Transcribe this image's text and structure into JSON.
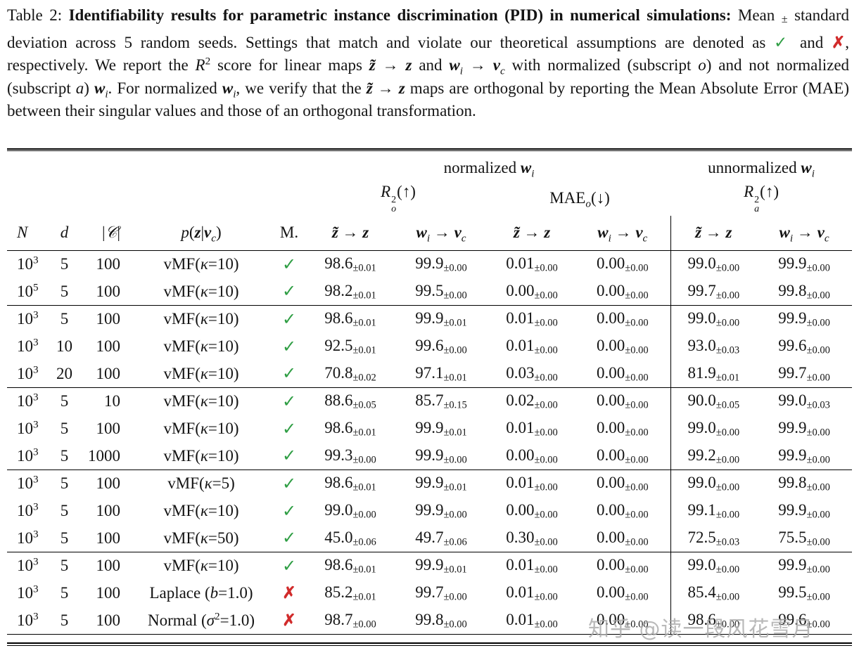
{
  "caption": {
    "label": "Table 2: ",
    "bold": "Identifiability results for parametric instance discrimination (PID) in numerical simulations:",
    "rest_html": " Mean <span class='pm-cap'>±</span> standard deviation across 5 random seeds. Settings that match and violate our theoretical assumptions are denoted as <span class='ok'>✓</span> and <span class='bad'>✗</span>, respectively. We report the <i>R</i><sup>2</sup> score for linear maps <b class='mi'>z̃</b> → <b class='mi'>z</b> and <b class='mi'>w</b><sub><i>i</i></sub> → <b class='mi'>v</b><sub><i>c</i></sub> with normalized (subscript <i>o</i>) and not normalized (subscript <i>a</i>) <b class='mi'>w</b><sub><i>i</i></sub>. For normalized <b class='mi'>w</b><sub><i>i</i></sub>, we verify that the <b class='mi'>z̃</b> → <b class='mi'>z</b> maps are orthogonal by reporting the Mean Absolute Error (MAE) between their singular values and those of an orthogonal transformation."
  },
  "icons": {
    "check": "✓",
    "cross": "✗"
  },
  "colors": {
    "check": "#2f9e44",
    "cross": "#d12b2b",
    "watermark": "#a8a8a8"
  },
  "watermark": {
    "text": "知乎 @读一段风花雪月"
  },
  "table": {
    "group_headers": [
      {
        "html": "normalized <b class='mi'>w</b><sub><i>i</i></sub>",
        "span": 4
      },
      {
        "html": "unnormalized <b class='mi'>w</b><sub><i>i</i></sub>",
        "span": 2
      }
    ],
    "metric_headers": [
      {
        "html": "<i>R</i><span class='ss'><span>2</span><span class='it'>o</span></span>(↑)",
        "span": 2
      },
      {
        "html": "MAE<sub><i>o</i></sub>(↓)",
        "span": 2
      },
      {
        "html": "<i>R</i><span class='ss'><span>2</span><span class='it'>a</span></span>(↑)",
        "span": 2
      }
    ],
    "col_headers_html": [
      "<i>N</i>",
      "<i>d</i>",
      "|<span class='scr'>𝒞</span>|",
      "<i>p</i>(<b class='mi'>z</b>|<b class='mi'>v</b><sub><i>c</i></sub>)",
      "M.",
      "<b class='mi'>z̃</b> → <b class='mi'>z</b>",
      "<b class='mi'>w</b><sub><i>i</i></sub> → <b class='mi'>v</b><sub><i>c</i></sub>",
      "<b class='mi'>z̃</b> → <b class='mi'>z</b>",
      "<b class='mi'>w</b><sub><i>i</i></sub> → <b class='mi'>v</b><sub><i>c</i></sub>",
      "<b class='mi'>z̃</b> → <b class='mi'>z</b>",
      "<b class='mi'>w</b><sub><i>i</i></sub> → <b class='mi'>v</b><sub><i>c</i></sub>"
    ],
    "groups": [
      [
        {
          "n": [
            "10",
            "3"
          ],
          "d": "5",
          "c": "100",
          "p": "vMF(<i>κ</i>=10)",
          "ok": true,
          "v": [
            [
              "98.6",
              "0.01"
            ],
            [
              "99.9",
              "0.00"
            ],
            [
              "0.01",
              "0.00"
            ],
            [
              "0.00",
              "0.00"
            ],
            [
              "99.0",
              "0.00"
            ],
            [
              "99.9",
              "0.00"
            ]
          ]
        },
        {
          "n": [
            "10",
            "5"
          ],
          "d": "5",
          "c": "100",
          "p": "vMF(<i>κ</i>=10)",
          "ok": true,
          "v": [
            [
              "98.2",
              "0.01"
            ],
            [
              "99.5",
              "0.00"
            ],
            [
              "0.00",
              "0.00"
            ],
            [
              "0.00",
              "0.00"
            ],
            [
              "99.7",
              "0.00"
            ],
            [
              "99.8",
              "0.00"
            ]
          ]
        }
      ],
      [
        {
          "n": [
            "10",
            "3"
          ],
          "d": "5",
          "c": "100",
          "p": "vMF(<i>κ</i>=10)",
          "ok": true,
          "v": [
            [
              "98.6",
              "0.01"
            ],
            [
              "99.9",
              "0.01"
            ],
            [
              "0.01",
              "0.00"
            ],
            [
              "0.00",
              "0.00"
            ],
            [
              "99.0",
              "0.00"
            ],
            [
              "99.9",
              "0.00"
            ]
          ]
        },
        {
          "n": [
            "10",
            "3"
          ],
          "d": "10",
          "c": "100",
          "p": "vMF(<i>κ</i>=10)",
          "ok": true,
          "v": [
            [
              "92.5",
              "0.01"
            ],
            [
              "99.6",
              "0.00"
            ],
            [
              "0.01",
              "0.00"
            ],
            [
              "0.00",
              "0.00"
            ],
            [
              "93.0",
              "0.03"
            ],
            [
              "99.6",
              "0.00"
            ]
          ]
        },
        {
          "n": [
            "10",
            "3"
          ],
          "d": "20",
          "c": "100",
          "p": "vMF(<i>κ</i>=10)",
          "ok": true,
          "v": [
            [
              "70.8",
              "0.02"
            ],
            [
              "97.1",
              "0.01"
            ],
            [
              "0.03",
              "0.00"
            ],
            [
              "0.00",
              "0.00"
            ],
            [
              "81.9",
              "0.01"
            ],
            [
              "99.7",
              "0.00"
            ]
          ]
        }
      ],
      [
        {
          "n": [
            "10",
            "3"
          ],
          "d": "5",
          "c": "10",
          "p": "vMF(<i>κ</i>=10)",
          "ok": true,
          "v": [
            [
              "88.6",
              "0.05"
            ],
            [
              "85.7",
              "0.15"
            ],
            [
              "0.02",
              "0.00"
            ],
            [
              "0.00",
              "0.00"
            ],
            [
              "90.0",
              "0.05"
            ],
            [
              "99.0",
              "0.03"
            ]
          ]
        },
        {
          "n": [
            "10",
            "3"
          ],
          "d": "5",
          "c": "100",
          "p": "vMF(<i>κ</i>=10)",
          "ok": true,
          "v": [
            [
              "98.6",
              "0.01"
            ],
            [
              "99.9",
              "0.01"
            ],
            [
              "0.01",
              "0.00"
            ],
            [
              "0.00",
              "0.00"
            ],
            [
              "99.0",
              "0.00"
            ],
            [
              "99.9",
              "0.00"
            ]
          ]
        },
        {
          "n": [
            "10",
            "3"
          ],
          "d": "5",
          "c": "1000",
          "p": "vMF(<i>κ</i>=10)",
          "ok": true,
          "v": [
            [
              "99.3",
              "0.00"
            ],
            [
              "99.9",
              "0.00"
            ],
            [
              "0.00",
              "0.00"
            ],
            [
              "0.00",
              "0.00"
            ],
            [
              "99.2",
              "0.00"
            ],
            [
              "99.9",
              "0.00"
            ]
          ]
        }
      ],
      [
        {
          "n": [
            "10",
            "3"
          ],
          "d": "5",
          "c": "100",
          "p": "vMF(<i>κ</i>=5)",
          "ok": true,
          "v": [
            [
              "98.6",
              "0.01"
            ],
            [
              "99.9",
              "0.01"
            ],
            [
              "0.01",
              "0.00"
            ],
            [
              "0.00",
              "0.00"
            ],
            [
              "99.0",
              "0.00"
            ],
            [
              "99.8",
              "0.00"
            ]
          ]
        },
        {
          "n": [
            "10",
            "3"
          ],
          "d": "5",
          "c": "100",
          "p": "vMF(<i>κ</i>=10)",
          "ok": true,
          "v": [
            [
              "99.0",
              "0.00"
            ],
            [
              "99.9",
              "0.00"
            ],
            [
              "0.00",
              "0.00"
            ],
            [
              "0.00",
              "0.00"
            ],
            [
              "99.1",
              "0.00"
            ],
            [
              "99.9",
              "0.00"
            ]
          ]
        },
        {
          "n": [
            "10",
            "3"
          ],
          "d": "5",
          "c": "100",
          "p": "vMF(<i>κ</i>=50)",
          "ok": true,
          "v": [
            [
              "45.0",
              "0.06"
            ],
            [
              "49.7",
              "0.06"
            ],
            [
              "0.30",
              "0.00"
            ],
            [
              "0.00",
              "0.00"
            ],
            [
              "72.5",
              "0.03"
            ],
            [
              "75.5",
              "0.00"
            ]
          ]
        }
      ],
      [
        {
          "n": [
            "10",
            "3"
          ],
          "d": "5",
          "c": "100",
          "p": "vMF(<i>κ</i>=10)",
          "ok": true,
          "v": [
            [
              "98.6",
              "0.01"
            ],
            [
              "99.9",
              "0.01"
            ],
            [
              "0.01",
              "0.00"
            ],
            [
              "0.00",
              "0.00"
            ],
            [
              "99.0",
              "0.00"
            ],
            [
              "99.9",
              "0.00"
            ]
          ]
        },
        {
          "n": [
            "10",
            "3"
          ],
          "d": "5",
          "c": "100",
          "p": "Laplace (<i>b</i>=1.0)",
          "ok": false,
          "v": [
            [
              "85.2",
              "0.01"
            ],
            [
              "99.7",
              "0.00"
            ],
            [
              "0.01",
              "0.00"
            ],
            [
              "0.00",
              "0.00"
            ],
            [
              "85.4",
              "0.00"
            ],
            [
              "99.5",
              "0.00"
            ]
          ]
        },
        {
          "n": [
            "10",
            "3"
          ],
          "d": "5",
          "c": "100",
          "p": "Normal (<i>σ</i><sup>2</sup>=1.0)",
          "ok": false,
          "v": [
            [
              "98.7",
              "0.00"
            ],
            [
              "99.8",
              "0.00"
            ],
            [
              "0.01",
              "0.00"
            ],
            [
              "0.00",
              "0.00"
            ],
            [
              "98.6",
              "0.00"
            ],
            [
              "99.6",
              "0.00"
            ]
          ]
        }
      ]
    ]
  }
}
